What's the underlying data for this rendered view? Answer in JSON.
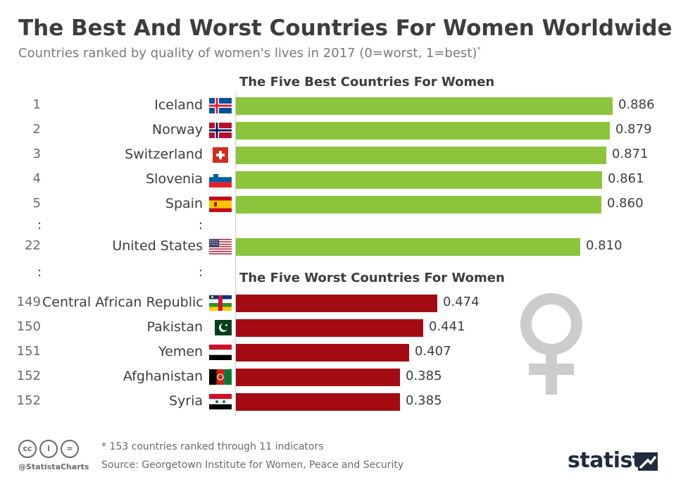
{
  "header": {
    "title": "The Best And Worst Countries For Women Worldwide",
    "subtitle": "Countries ranked by quality of women's lives in 2017 (0=worst, 1=best)",
    "subtitle_mark": "*"
  },
  "sections": {
    "best_title": "The Five Best Countries For Women",
    "worst_title": "The Five Worst Countries For Women"
  },
  "ellipsis": ":",
  "colors": {
    "best": "#8cc43c",
    "worst": "#a40b12",
    "text": "#3d3d3d",
    "muted": "#6a6a6a",
    "icon": "#cccccc"
  },
  "chart_data": {
    "type": "bar",
    "orientation": "horizontal",
    "xlim": [
      0,
      1
    ],
    "title": "The Best And Worst Countries For Women Worldwide",
    "rows": [
      {
        "rank": "1",
        "country": "Iceland",
        "value": 0.886,
        "label": "0.886",
        "group": "best",
        "flag": "iceland-flag"
      },
      {
        "rank": "2",
        "country": "Norway",
        "value": 0.879,
        "label": "0.879",
        "group": "best",
        "flag": "norway-flag"
      },
      {
        "rank": "3",
        "country": "Switzerland",
        "value": 0.871,
        "label": "0.871",
        "group": "best",
        "flag": "switzerland-flag"
      },
      {
        "rank": "4",
        "country": "Slovenia",
        "value": 0.861,
        "label": "0.861",
        "group": "best",
        "flag": "slovenia-flag"
      },
      {
        "rank": "5",
        "country": "Spain",
        "value": 0.86,
        "label": "0.860",
        "group": "best",
        "flag": "spain-flag"
      },
      {
        "rank": "22",
        "country": "United States",
        "value": 0.81,
        "label": "0.810",
        "group": "best",
        "flag": "usa-flag"
      },
      {
        "rank": "149",
        "country": "Central African Republic",
        "value": 0.474,
        "label": "0.474",
        "group": "worst",
        "flag": "car-flag"
      },
      {
        "rank": "150",
        "country": "Pakistan",
        "value": 0.441,
        "label": "0.441",
        "group": "worst",
        "flag": "pakistan-flag"
      },
      {
        "rank": "151",
        "country": "Yemen",
        "value": 0.407,
        "label": "0.407",
        "group": "worst",
        "flag": "yemen-flag"
      },
      {
        "rank": "152",
        "country": "Afghanistan",
        "value": 0.385,
        "label": "0.385",
        "group": "worst",
        "flag": "afghanistan-flag"
      },
      {
        "rank": "152",
        "country": "Syria",
        "value": 0.385,
        "label": "0.385",
        "group": "worst",
        "flag": "syria-flag"
      }
    ]
  },
  "footer": {
    "note": "* 153 countries ranked through 11 indicators",
    "source": "Source: Georgetown Institute for Women, Peace and Security",
    "handle": "@StatistaCharts",
    "brand": "statista",
    "cc_icons": [
      "cc-icon",
      "attribution-icon",
      "no-derivatives-icon"
    ],
    "cc_text": [
      "cc",
      "i",
      "="
    ]
  }
}
